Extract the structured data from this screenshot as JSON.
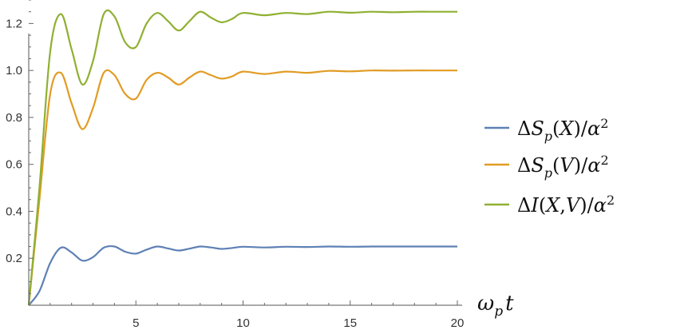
{
  "chart_data": {
    "type": "line",
    "title": "",
    "xlabel": "ω_p t",
    "ylabel": "",
    "xlim": [
      0,
      20
    ],
    "ylim": [
      0,
      1.3
    ],
    "xticks": [
      5,
      10,
      15,
      20
    ],
    "yticks": [
      0.2,
      0.4,
      0.6,
      0.8,
      1.0,
      1.2
    ],
    "xtick_labels": [
      "5",
      "10",
      "15",
      "20"
    ],
    "ytick_labels": [
      "0.2",
      "0.4",
      "0.6",
      "0.8",
      "1.0",
      "1.2"
    ],
    "grid": false,
    "legend_position": "right",
    "series": [
      {
        "name": "ΔS_p(X)/α^2",
        "color": "#5e81b5",
        "final_value": 0.25,
        "x": [
          0,
          0.5,
          1.0,
          1.5,
          2.0,
          2.5,
          3.0,
          3.5,
          4.0,
          4.5,
          5.0,
          5.5,
          6.0,
          6.5,
          7.0,
          7.5,
          8.0,
          8.5,
          9.0,
          9.5,
          10.0,
          11.0,
          12.0,
          13.0,
          14.0,
          15.0,
          16.0,
          17.0,
          18.0,
          19.0,
          20.0
        ],
        "values": [
          0.0,
          0.06,
          0.18,
          0.245,
          0.225,
          0.19,
          0.205,
          0.245,
          0.25,
          0.228,
          0.22,
          0.237,
          0.25,
          0.242,
          0.233,
          0.241,
          0.25,
          0.246,
          0.24,
          0.244,
          0.249,
          0.246,
          0.249,
          0.248,
          0.25,
          0.249,
          0.25,
          0.25,
          0.25,
          0.25,
          0.25
        ]
      },
      {
        "name": "ΔS_p(V)/α^2",
        "color": "#e19c24",
        "final_value": 1.0,
        "x": [
          0,
          0.5,
          1.0,
          1.5,
          2.0,
          2.5,
          3.0,
          3.5,
          4.0,
          4.5,
          5.0,
          5.5,
          6.0,
          6.5,
          7.0,
          7.5,
          8.0,
          8.5,
          9.0,
          9.5,
          10.0,
          11.0,
          12.0,
          13.0,
          14.0,
          15.0,
          16.0,
          17.0,
          18.0,
          19.0,
          20.0
        ],
        "values": [
          0.0,
          0.45,
          0.9,
          0.99,
          0.86,
          0.75,
          0.84,
          0.99,
          0.98,
          0.9,
          0.88,
          0.96,
          0.99,
          0.97,
          0.94,
          0.97,
          0.995,
          0.98,
          0.965,
          0.975,
          0.995,
          0.985,
          0.995,
          0.99,
          0.998,
          0.996,
          1.0,
          0.999,
          1.0,
          1.0,
          1.0
        ]
      },
      {
        "name": "ΔI(X,V)/α^2",
        "color": "#8fb032",
        "final_value": 1.25,
        "x": [
          0,
          0.5,
          1.0,
          1.5,
          2.0,
          2.5,
          3.0,
          3.5,
          4.0,
          4.5,
          5.0,
          5.5,
          6.0,
          6.5,
          7.0,
          7.5,
          8.0,
          8.5,
          9.0,
          9.5,
          10.0,
          11.0,
          12.0,
          13.0,
          14.0,
          15.0,
          16.0,
          17.0,
          18.0,
          19.0,
          20.0
        ],
        "values": [
          0.0,
          0.5,
          1.08,
          1.24,
          1.09,
          0.94,
          1.04,
          1.24,
          1.23,
          1.12,
          1.1,
          1.2,
          1.245,
          1.21,
          1.17,
          1.21,
          1.25,
          1.225,
          1.205,
          1.22,
          1.245,
          1.235,
          1.245,
          1.24,
          1.25,
          1.246,
          1.25,
          1.248,
          1.25,
          1.25,
          1.25
        ]
      }
    ]
  }
}
